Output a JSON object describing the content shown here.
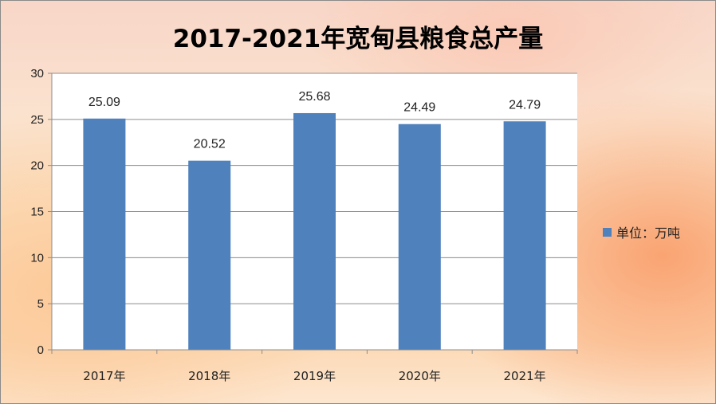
{
  "chart_data": {
    "type": "bar",
    "title": "2017-2021年宽甸县粮食总产量",
    "categories": [
      "2017年",
      "2018年",
      "2019年",
      "2020年",
      "2021年"
    ],
    "series": [
      {
        "name": "单位：万吨",
        "values": [
          25.09,
          20.52,
          25.68,
          24.49,
          24.79
        ],
        "color": "#4f81bd"
      }
    ],
    "data_labels": [
      "25.09",
      "20.52",
      "25.68",
      "24.49",
      "24.79"
    ],
    "ylim": [
      0,
      30
    ],
    "yticks": [
      0,
      5,
      10,
      15,
      20,
      25,
      30
    ],
    "grid": true,
    "legend_position": "right"
  }
}
